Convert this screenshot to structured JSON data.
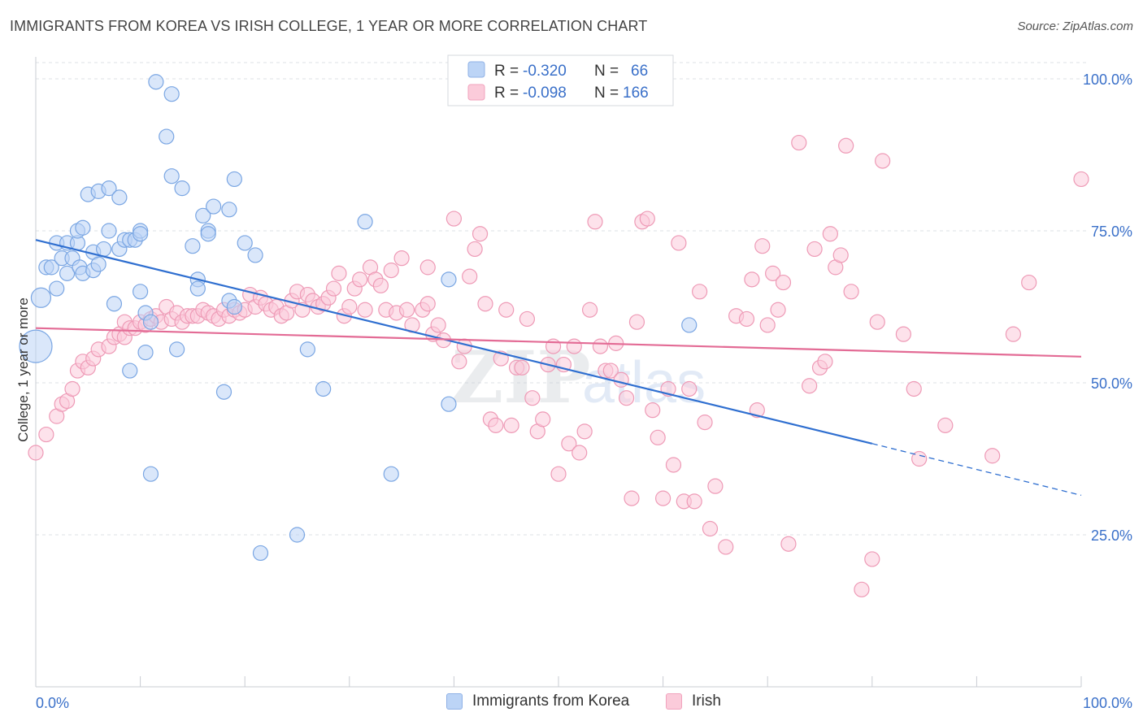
{
  "header": {
    "title": "IMMIGRANTS FROM KOREA VS IRISH COLLEGE, 1 YEAR OR MORE CORRELATION CHART",
    "source": "Source: ZipAtlas.com"
  },
  "watermark": {
    "zip": "ZIP",
    "atlas": "atlas"
  },
  "colors": {
    "blue_fill": "#bcd4f6",
    "blue_stroke": "#7aa6e3",
    "blue_line": "#2f6fd0",
    "pink_fill": "#fbcbda",
    "pink_stroke": "#ee9ab6",
    "pink_line": "#e36b95",
    "tick_label": "#3a70c9",
    "grid": "#dde0e6"
  },
  "chart_data": {
    "type": "scatter",
    "title": "IMMIGRANTS FROM KOREA VS IRISH COLLEGE, 1 YEAR OR MORE CORRELATION CHART",
    "xlabel": "",
    "ylabel": "College, 1 year or more",
    "xlim": [
      0,
      100
    ],
    "ylim": [
      0,
      104
    ],
    "x_tick_labels": [
      {
        "value": 0,
        "label": "0.0%"
      },
      {
        "value": 100,
        "label": "100.0%"
      }
    ],
    "y_tick_labels": [
      {
        "value": 100,
        "label": "100.0%"
      },
      {
        "value": 75,
        "label": "75.0%"
      },
      {
        "value": 50,
        "label": "50.0%"
      },
      {
        "value": 25,
        "label": "25.0%"
      }
    ],
    "grid": true,
    "legend": {
      "placement": "top-center",
      "rows": [
        {
          "r_label": "R =",
          "r_value": "-0.320",
          "n_label": "N =",
          "n_value": "66"
        },
        {
          "r_label": "R =",
          "r_value": "-0.098",
          "n_label": "N =",
          "n_value": "166"
        }
      ]
    },
    "series": [
      {
        "name": "Immigrants from Korea",
        "color": "#7aa6e3",
        "trend": {
          "x0": 0,
          "y0": 73.5,
          "x1": 80,
          "y1": 40,
          "dashed_to_x": 100,
          "dashed_to_y": 31.5
        },
        "points": [
          [
            0,
            56
          ],
          [
            0.5,
            64
          ],
          [
            1,
            69
          ],
          [
            1.5,
            69
          ],
          [
            2,
            73
          ],
          [
            2,
            65.5
          ],
          [
            2.5,
            70.5
          ],
          [
            3,
            73
          ],
          [
            3,
            68
          ],
          [
            4,
            73
          ],
          [
            3.5,
            70.5
          ],
          [
            4,
            75
          ],
          [
            4.2,
            69
          ],
          [
            4.5,
            68
          ],
          [
            4.5,
            75.5
          ],
          [
            5,
            81
          ],
          [
            5.5,
            71.5
          ],
          [
            5.5,
            68.5
          ],
          [
            6,
            81.5
          ],
          [
            6,
            69.5
          ],
          [
            6.5,
            72
          ],
          [
            7,
            82
          ],
          [
            7,
            75
          ],
          [
            7.5,
            63
          ],
          [
            8,
            72
          ],
          [
            8,
            80.5
          ],
          [
            8.5,
            73.5
          ],
          [
            9,
            73.5
          ],
          [
            9,
            52
          ],
          [
            9.5,
            73.5
          ],
          [
            10,
            75
          ],
          [
            10,
            74.5
          ],
          [
            10,
            65
          ],
          [
            10.5,
            55
          ],
          [
            10.5,
            61.5
          ],
          [
            11,
            35
          ],
          [
            11,
            60
          ],
          [
            11.5,
            99.5
          ],
          [
            12.5,
            90.5
          ],
          [
            13,
            97.5
          ],
          [
            13,
            84
          ],
          [
            13.5,
            55.5
          ],
          [
            14,
            82
          ],
          [
            15,
            72.5
          ],
          [
            15.5,
            67
          ],
          [
            15.5,
            65.5
          ],
          [
            16,
            77.5
          ],
          [
            16.5,
            75
          ],
          [
            16.5,
            74.5
          ],
          [
            17,
            79
          ],
          [
            18,
            48.5
          ],
          [
            18.5,
            63.5
          ],
          [
            18.5,
            78.5
          ],
          [
            19,
            83.5
          ],
          [
            19,
            62.5
          ],
          [
            20,
            73
          ],
          [
            21,
            71
          ],
          [
            21.5,
            22
          ],
          [
            25,
            25
          ],
          [
            26,
            55.5
          ],
          [
            27.5,
            49
          ],
          [
            31.5,
            76.5
          ],
          [
            34,
            35
          ],
          [
            39.5,
            46.5
          ],
          [
            39.5,
            67
          ],
          [
            62.5,
            59.5
          ]
        ]
      },
      {
        "name": "Irish",
        "color": "#ee9ab6",
        "trend": {
          "x0": 0,
          "y0": 59,
          "x1": 100,
          "y1": 54.3
        },
        "points": [
          [
            0,
            38.5
          ],
          [
            1,
            41.5
          ],
          [
            2,
            44.5
          ],
          [
            2.5,
            46.5
          ],
          [
            3,
            47
          ],
          [
            3.5,
            49
          ],
          [
            4,
            52
          ],
          [
            4.5,
            53.5
          ],
          [
            5,
            52.5
          ],
          [
            5.5,
            54
          ],
          [
            6,
            55.5
          ],
          [
            7,
            56
          ],
          [
            7.5,
            57.5
          ],
          [
            8,
            58
          ],
          [
            8.5,
            60
          ],
          [
            8.5,
            57.5
          ],
          [
            9,
            59
          ],
          [
            9.5,
            59
          ],
          [
            10,
            60
          ],
          [
            10.5,
            59.5
          ],
          [
            11,
            60.5
          ],
          [
            11.5,
            61
          ],
          [
            12,
            60
          ],
          [
            12.5,
            62.5
          ],
          [
            13,
            60.5
          ],
          [
            13.5,
            61.5
          ],
          [
            14,
            60
          ],
          [
            14.5,
            61
          ],
          [
            15,
            61
          ],
          [
            15.5,
            61
          ],
          [
            16,
            62
          ],
          [
            16.5,
            61.5
          ],
          [
            17,
            61
          ],
          [
            17.5,
            60.5
          ],
          [
            18,
            62
          ],
          [
            18.5,
            61
          ],
          [
            19,
            62
          ],
          [
            19.5,
            61.5
          ],
          [
            20,
            62
          ],
          [
            20.5,
            64.5
          ],
          [
            21,
            62.5
          ],
          [
            21.5,
            64
          ],
          [
            22,
            63
          ],
          [
            22.5,
            62
          ],
          [
            23,
            62.5
          ],
          [
            23.5,
            61
          ],
          [
            24,
            61.5
          ],
          [
            24.5,
            63.5
          ],
          [
            25,
            65
          ],
          [
            25.5,
            62
          ],
          [
            26,
            64.5
          ],
          [
            26.5,
            63.5
          ],
          [
            27,
            62.5
          ],
          [
            27.5,
            63
          ],
          [
            28,
            64
          ],
          [
            28.5,
            65.5
          ],
          [
            29,
            68
          ],
          [
            29.5,
            61
          ],
          [
            30,
            62.5
          ],
          [
            30.5,
            65.5
          ],
          [
            31,
            67
          ],
          [
            31.5,
            62
          ],
          [
            32,
            69
          ],
          [
            32.5,
            67
          ],
          [
            33,
            66
          ],
          [
            33.5,
            62
          ],
          [
            34,
            68.5
          ],
          [
            34.5,
            61.5
          ],
          [
            35,
            70.5
          ],
          [
            35.5,
            62
          ],
          [
            36,
            59.5
          ],
          [
            37,
            62
          ],
          [
            37.5,
            63
          ],
          [
            37.5,
            69
          ],
          [
            38,
            58
          ],
          [
            38.5,
            59.5
          ],
          [
            39,
            57
          ],
          [
            40,
            77
          ],
          [
            40.5,
            53.5
          ],
          [
            41,
            56
          ],
          [
            41.5,
            67.5
          ],
          [
            42,
            72
          ],
          [
            42.5,
            74.5
          ],
          [
            43,
            63
          ],
          [
            43.5,
            44
          ],
          [
            44,
            43
          ],
          [
            44.5,
            54
          ],
          [
            45,
            62
          ],
          [
            45.5,
            43
          ],
          [
            46,
            52.5
          ],
          [
            46.5,
            52.5
          ],
          [
            47,
            60.5
          ],
          [
            47.5,
            47.5
          ],
          [
            48,
            42
          ],
          [
            48.5,
            44
          ],
          [
            49,
            53
          ],
          [
            49.5,
            56
          ],
          [
            50,
            35
          ],
          [
            50.5,
            53
          ],
          [
            51,
            40
          ],
          [
            51.5,
            56
          ],
          [
            52,
            38.5
          ],
          [
            52.5,
            42
          ],
          [
            53,
            62
          ],
          [
            53.5,
            76.5
          ],
          [
            54,
            56
          ],
          [
            54.5,
            52
          ],
          [
            55,
            52
          ],
          [
            55.5,
            56.5
          ],
          [
            56,
            50.5
          ],
          [
            56.5,
            47.5
          ],
          [
            57,
            31
          ],
          [
            57.5,
            60
          ],
          [
            58,
            76.5
          ],
          [
            58.5,
            77
          ],
          [
            59,
            45.5
          ],
          [
            59.5,
            41
          ],
          [
            60,
            31
          ],
          [
            60.5,
            49
          ],
          [
            61,
            36.5
          ],
          [
            61.5,
            73
          ],
          [
            62,
            30.5
          ],
          [
            62.5,
            49
          ],
          [
            63,
            30.5
          ],
          [
            63.5,
            65
          ],
          [
            64,
            43.5
          ],
          [
            64.5,
            26
          ],
          [
            65,
            33
          ],
          [
            66,
            23
          ],
          [
            67,
            61
          ],
          [
            68,
            60.5
          ],
          [
            68.5,
            67
          ],
          [
            69,
            45.5
          ],
          [
            69.5,
            72.5
          ],
          [
            70,
            59.5
          ],
          [
            70.5,
            68
          ],
          [
            71,
            62
          ],
          [
            71.5,
            66.5
          ],
          [
            72,
            23.5
          ],
          [
            73,
            89.5
          ],
          [
            74,
            49.5
          ],
          [
            74.5,
            72
          ],
          [
            75,
            52.5
          ],
          [
            75.5,
            53.5
          ],
          [
            76,
            74.5
          ],
          [
            76.5,
            69
          ],
          [
            77,
            71
          ],
          [
            77.5,
            89
          ],
          [
            78,
            65
          ],
          [
            79,
            16
          ],
          [
            80,
            21
          ],
          [
            80.5,
            60
          ],
          [
            81,
            86.5
          ],
          [
            83,
            58
          ],
          [
            84,
            49
          ],
          [
            84.5,
            37.5
          ],
          [
            87,
            43
          ],
          [
            91.5,
            38
          ],
          [
            93.5,
            58
          ],
          [
            95,
            66.5
          ],
          [
            100,
            83.5
          ]
        ]
      }
    ]
  }
}
